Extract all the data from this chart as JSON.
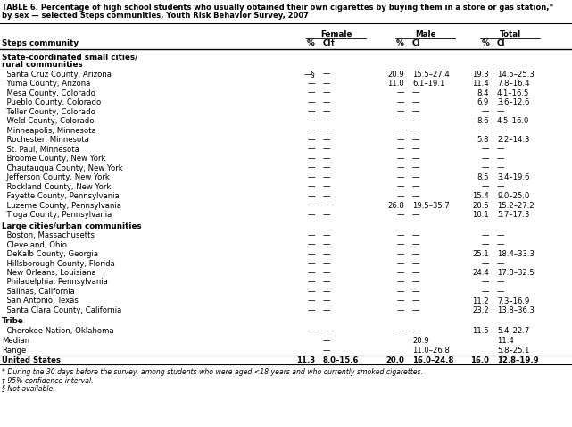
{
  "title1": "TABLE 6. Percentage of high school students who usually obtained their own cigarettes by buying them in a store or gas station,*",
  "title2": "by sex — selected Steps communities, Youth Risk Behavior Survey, 2007",
  "sub_headers": [
    "Steps community",
    "%",
    "CI†",
    "%",
    "CI",
    "%",
    "CI"
  ],
  "group_headers": [
    "Female",
    "Male",
    "Total"
  ],
  "section1_header_line1": "State-coordinated small cities/",
  "section1_header_line2": "rural communities",
  "section2_header": "Large cities/urban communities",
  "section3_header": "Tribe",
  "rows": [
    [
      "Santa Cruz County, Arizona",
      "—§",
      "—",
      "20.9",
      "15.5–27.4",
      "19.3",
      "14.5–25.3"
    ],
    [
      "Yuma County, Arizona",
      "—",
      "—",
      "11.0",
      "6.1–19.1",
      "11.4",
      "7.8–16.4"
    ],
    [
      "Mesa County, Colorado",
      "—",
      "—",
      "—",
      "—",
      "8.4",
      "4.1–16.5"
    ],
    [
      "Pueblo County, Colorado",
      "—",
      "—",
      "—",
      "—",
      "6.9",
      "3.6–12.6"
    ],
    [
      "Teller County, Colorado",
      "—",
      "—",
      "—",
      "—",
      "—",
      "—"
    ],
    [
      "Weld County, Colorado",
      "—",
      "—",
      "—",
      "—",
      "8.6",
      "4.5–16.0"
    ],
    [
      "Minneapolis, Minnesota",
      "—",
      "—",
      "—",
      "—",
      "—",
      "—"
    ],
    [
      "Rochester, Minnesota",
      "—",
      "—",
      "—",
      "—",
      "5.8",
      "2.2–14.3"
    ],
    [
      "St. Paul, Minnesota",
      "—",
      "—",
      "—",
      "—",
      "—",
      "—"
    ],
    [
      "Broome County, New York",
      "—",
      "—",
      "—",
      "—",
      "—",
      "—"
    ],
    [
      "Chautauqua County, New York",
      "—",
      "—",
      "—",
      "—",
      "—",
      "—"
    ],
    [
      "Jefferson County, New York",
      "—",
      "—",
      "—",
      "—",
      "8.5",
      "3.4–19.6"
    ],
    [
      "Rockland County, New York",
      "—",
      "—",
      "—",
      "—",
      "—",
      "—"
    ],
    [
      "Fayette County, Pennsylvania",
      "—",
      "—",
      "—",
      "—",
      "15.4",
      "9.0–25.0"
    ],
    [
      "Luzerne County, Pennsylvania",
      "—",
      "—",
      "26.8",
      "19.5–35.7",
      "20.5",
      "15.2–27.2"
    ],
    [
      "Tioga County, Pennsylvania",
      "—",
      "—",
      "—",
      "—",
      "10.1",
      "5.7–17.3"
    ],
    [
      "Boston, Massachusetts",
      "—",
      "—",
      "—",
      "—",
      "—",
      "—"
    ],
    [
      "Cleveland, Ohio",
      "—",
      "—",
      "—",
      "—",
      "—",
      "—"
    ],
    [
      "DeKalb County, Georgia",
      "—",
      "—",
      "—",
      "—",
      "25.1",
      "18.4–33.3"
    ],
    [
      "Hillsborough County, Florida",
      "—",
      "—",
      "—",
      "—",
      "—",
      "—"
    ],
    [
      "New Orleans, Louisiana",
      "—",
      "—",
      "—",
      "—",
      "24.4",
      "17.8–32.5"
    ],
    [
      "Philadelphia, Pennsylvania",
      "—",
      "—",
      "—",
      "—",
      "—",
      "—"
    ],
    [
      "Salinas, California",
      "—",
      "—",
      "—",
      "—",
      "—",
      "—"
    ],
    [
      "San Antonio, Texas",
      "—",
      "—",
      "—",
      "—",
      "11.2",
      "7.3–16.9"
    ],
    [
      "Santa Clara County, California",
      "—",
      "—",
      "—",
      "—",
      "23.2",
      "13.8–36.3"
    ],
    [
      "Cherokee Nation, Oklahoma",
      "—",
      "—",
      "—",
      "—",
      "11.5",
      "5.4–22.7"
    ]
  ],
  "median_row": [
    "Median",
    "",
    "—",
    "",
    "20.9",
    "",
    "11.4"
  ],
  "range_row": [
    "Range",
    "",
    "—",
    "",
    "11.0–26.8",
    "",
    "5.8–25.1"
  ],
  "us_row": [
    "United States",
    "11.3",
    "8.0–15.6",
    "20.0",
    "16.0–24.8",
    "16.0",
    "12.8–19.9"
  ],
  "footnotes": [
    "* During the 30 days before the survey, among students who were aged <18 years and who currently smoked cigarettes.",
    "† 95% confidence interval.",
    "§ Not available."
  ]
}
